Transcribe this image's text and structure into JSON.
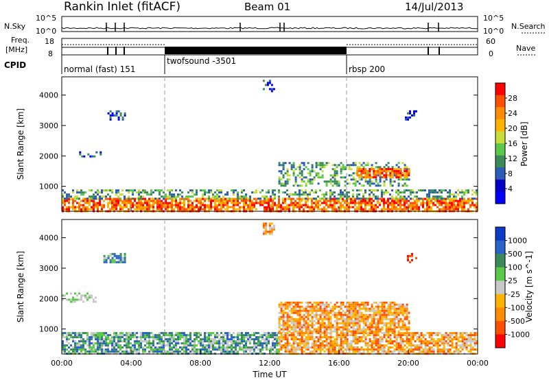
{
  "header": {
    "station": "Rankin Inlet (fitACF)",
    "beam": "Beam 01",
    "date": "14/Jul/2013"
  },
  "top_panels": {
    "nsky_label": "N.Sky",
    "nsky_ticks": [
      "10^5",
      "10^0"
    ],
    "nsearch_label": "N.Search",
    "nsearch_ticks": [
      "10^5",
      "10^0"
    ],
    "freq_label_1": "Freq.",
    "freq_label_2": "[MHz]",
    "freq_ticks": [
      "18",
      "8"
    ],
    "nave_label": "Nave",
    "nave_ticks": [
      "60",
      "0"
    ],
    "cpid_label": "CPID"
  },
  "cpid_segments": [
    {
      "label": "normal (fast) 151",
      "start_h": 0.0,
      "end_h": 6.0
    },
    {
      "label": "twofsound -3501",
      "start_h": 6.0,
      "end_h": 16.6
    },
    {
      "label": "rbsp 200",
      "start_h": 16.6,
      "end_h": 24.0
    }
  ],
  "colors": {
    "power_scale": [
      "#0000ff",
      "#0000c8",
      "#2a5cb8",
      "#3c8a5a",
      "#5ac84a",
      "#c8dc3c",
      "#ffb400",
      "#ff8c00",
      "#ff5000",
      "#ff0000"
    ],
    "velocity_scale": [
      "#0a3cc8",
      "#2864c8",
      "#3c8a5a",
      "#5ac84a",
      "#c8c8c8",
      "#ffb400",
      "#ff8c00",
      "#ff5000",
      "#ff0000"
    ]
  },
  "chart_data": [
    {
      "type": "heatmap",
      "title": "Power",
      "ylabel": "Slant Range [km]",
      "xlabel": "",
      "xlim_hours": [
        0,
        24
      ],
      "ylim": [
        180,
        4600
      ],
      "y_ticks": [
        "1000",
        "2000",
        "3000",
        "4000"
      ],
      "colorbar_label": "Power [dB]",
      "colorbar_ticks": [
        "28",
        "24",
        "20",
        "16",
        "12",
        "8",
        "4"
      ],
      "regions": [
        {
          "h0": 0.0,
          "h1": 24.0,
          "r0": 180,
          "r1": 620,
          "level": "high"
        },
        {
          "h0": 0.0,
          "h1": 24.0,
          "r0": 620,
          "r1": 900,
          "level": "mid"
        },
        {
          "h0": 1.0,
          "h1": 2.2,
          "r0": 1950,
          "r1": 2150,
          "level": "low"
        },
        {
          "h0": 2.4,
          "h1": 3.6,
          "r0": 3200,
          "r1": 3500,
          "level": "low"
        },
        {
          "h0": 11.6,
          "h1": 12.3,
          "r0": 4100,
          "r1": 4500,
          "level": "low"
        },
        {
          "h0": 12.5,
          "h1": 20.0,
          "r0": 1000,
          "r1": 1800,
          "level": "mid"
        },
        {
          "h0": 17.0,
          "h1": 20.0,
          "r0": 1300,
          "r1": 1600,
          "level": "high"
        },
        {
          "h0": 19.8,
          "h1": 20.4,
          "r0": 3200,
          "r1": 3500,
          "level": "low"
        }
      ]
    },
    {
      "type": "heatmap",
      "title": "Velocity",
      "ylabel": "Slant Range [km]",
      "xlabel": "Time UT",
      "xlim_hours": [
        0,
        24
      ],
      "ylim": [
        180,
        4600
      ],
      "x_ticks": [
        "00:00",
        "04:00",
        "08:00",
        "12:00",
        "16:00",
        "20:00",
        "00:00"
      ],
      "y_ticks": [
        "1000",
        "2000",
        "3000",
        "4000"
      ],
      "colorbar_label": "Velocity [m s^-1]",
      "colorbar_ticks": [
        "1000",
        "500",
        "100",
        "25",
        "-25",
        "-100",
        "-500",
        "-1000"
      ],
      "regions": [
        {
          "h0": 0.0,
          "h1": 12.5,
          "r0": 180,
          "r1": 900,
          "level": "toward"
        },
        {
          "h0": 12.5,
          "h1": 24.0,
          "r0": 180,
          "r1": 900,
          "level": "away"
        },
        {
          "h0": 0.0,
          "h1": 2.0,
          "r0": 1900,
          "r1": 2200,
          "level": "ground"
        },
        {
          "h0": 2.4,
          "h1": 3.6,
          "r0": 3200,
          "r1": 3500,
          "level": "toward"
        },
        {
          "h0": 11.6,
          "h1": 12.3,
          "r0": 4100,
          "r1": 4500,
          "level": "away"
        },
        {
          "h0": 12.5,
          "h1": 20.0,
          "r0": 900,
          "r1": 1900,
          "level": "away"
        },
        {
          "h0": 19.8,
          "h1": 20.4,
          "r0": 3200,
          "r1": 3500,
          "level": "strong-away"
        }
      ]
    }
  ]
}
